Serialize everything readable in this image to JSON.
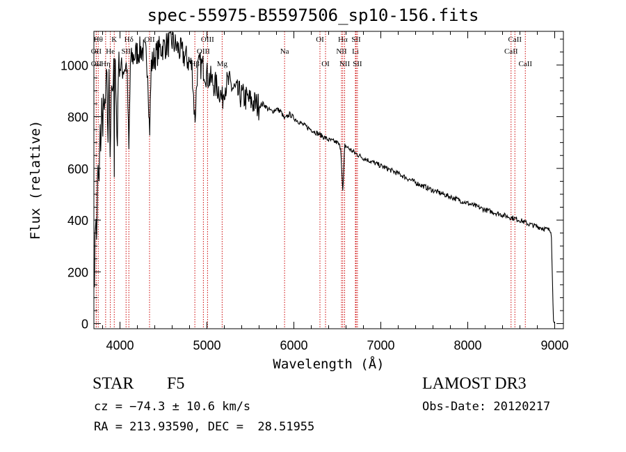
{
  "title": "spec-55975-B5597506_sp10-156.fits",
  "info": {
    "class_label": "STAR",
    "subclass_label": "F5",
    "survey": "LAMOST DR3",
    "cz": "cz = −74.3 ± 10.6 km/s",
    "obs_date": "Obs-Date: 20120217",
    "coords": "RA = 213.93590, DEC =  28.51955"
  },
  "colors": {
    "spectrum": "#000000",
    "line_marker": "#cc0000",
    "axis": "#000000"
  },
  "chart_data": {
    "type": "line",
    "title": "spec-55975-B5597506_sp10-156.fits",
    "xlabel": "Wavelength (Å)",
    "ylabel": "Flux (relative)",
    "xlim": [
      3700,
      9100
    ],
    "ylim": [
      -20,
      1130
    ],
    "xticks": [
      4000,
      5000,
      6000,
      7000,
      8000,
      9000
    ],
    "yticks": [
      0,
      200,
      400,
      600,
      800,
      1000
    ],
    "series": [
      {
        "name": "flux",
        "x": [
          3700,
          3705,
          3710,
          3720,
          3730,
          3745,
          3760,
          3770,
          3780,
          3790,
          3800,
          3810,
          3820,
          3835,
          3850,
          3860,
          3875,
          3889,
          3900,
          3915,
          3930,
          3934,
          3940,
          3955,
          3968,
          3980,
          4000,
          4020,
          4050,
          4080,
          4102,
          4120,
          4150,
          4200,
          4250,
          4300,
          4320,
          4340,
          4360,
          4400,
          4450,
          4500,
          4550,
          4600,
          4650,
          4700,
          4750,
          4800,
          4830,
          4861,
          4890,
          4920,
          4960,
          5000,
          5050,
          5100,
          5150,
          5175,
          5200,
          5250,
          5300,
          5350,
          5400,
          5450,
          5500,
          5550,
          5600,
          5650,
          5700,
          5750,
          5800,
          5850,
          5893,
          5950,
          6000,
          6100,
          6200,
          6300,
          6400,
          6500,
          6540,
          6563,
          6585,
          6620,
          6700,
          6800,
          7000,
          7200,
          7400,
          7600,
          7800,
          8000,
          8200,
          8400,
          8500,
          8600,
          8700,
          8800,
          8900,
          8960,
          8985,
          9000
        ],
        "y": [
          220,
          30,
          350,
          420,
          320,
          600,
          530,
          750,
          680,
          850,
          740,
          900,
          780,
          920,
          950,
          650,
          960,
          580,
          980,
          900,
          990,
          560,
          1000,
          940,
          620,
          1010,
          1000,
          980,
          990,
          1000,
          660,
          1010,
          1030,
          1050,
          1060,
          1040,
          980,
          730,
          1000,
          1030,
          1060,
          1070,
          1080,
          1090,
          1070,
          1050,
          1030,
          1010,
          990,
          780,
          980,
          1000,
          990,
          960,
          940,
          920,
          900,
          860,
          920,
          930,
          910,
          890,
          880,
          870,
          860,
          850,
          840,
          850,
          830,
          820,
          830,
          820,
          790,
          810,
          795,
          770,
          750,
          730,
          710,
          700,
          680,
          500,
          690,
          680,
          660,
          640,
          610,
          580,
          545,
          515,
          490,
          465,
          440,
          420,
          410,
          400,
          385,
          375,
          365,
          360,
          10,
          0
        ]
      }
    ],
    "lines": [
      {
        "name": "Hθ",
        "x": 3750,
        "row": 0
      },
      {
        "name": "K",
        "x": 3934,
        "row": 0
      },
      {
        "name": "Hδ",
        "x": 4102,
        "row": 0
      },
      {
        "name": "OII",
        "x": 4340,
        "row": 0
      },
      {
        "name": "OIII",
        "x": 5007,
        "row": 0
      },
      {
        "name": "OI",
        "x": 6300,
        "row": 0
      },
      {
        "name": "Hα",
        "x": 6563,
        "row": 0
      },
      {
        "name": "SII",
        "x": 6716,
        "row": 0
      },
      {
        "name": "CaII",
        "x": 8542,
        "row": 0
      },
      {
        "name": "OII",
        "x": 3727,
        "row": 1
      },
      {
        "name": "He",
        "x": 3889,
        "row": 1
      },
      {
        "name": "SII",
        "x": 4070,
        "row": 1
      },
      {
        "name": "OIII",
        "x": 4959,
        "row": 1
      },
      {
        "name": "Na",
        "x": 5893,
        "row": 1
      },
      {
        "name": "NII",
        "x": 6548,
        "row": 1
      },
      {
        "name": "Li",
        "x": 6708,
        "row": 1
      },
      {
        "name": "CaII",
        "x": 8498,
        "row": 1
      },
      {
        "name": "OII",
        "x": 3727,
        "row": 2
      },
      {
        "name": "Hη",
        "x": 3835,
        "row": 2
      },
      {
        "name": "Hβ",
        "x": 4861,
        "row": 2
      },
      {
        "name": "Mg",
        "x": 5175,
        "row": 2
      },
      {
        "name": "OI",
        "x": 6364,
        "row": 2
      },
      {
        "name": "NII",
        "x": 6584,
        "row": 2
      },
      {
        "name": "SII",
        "x": 6731,
        "row": 2
      },
      {
        "name": "CaII",
        "x": 8662,
        "row": 2
      }
    ]
  }
}
